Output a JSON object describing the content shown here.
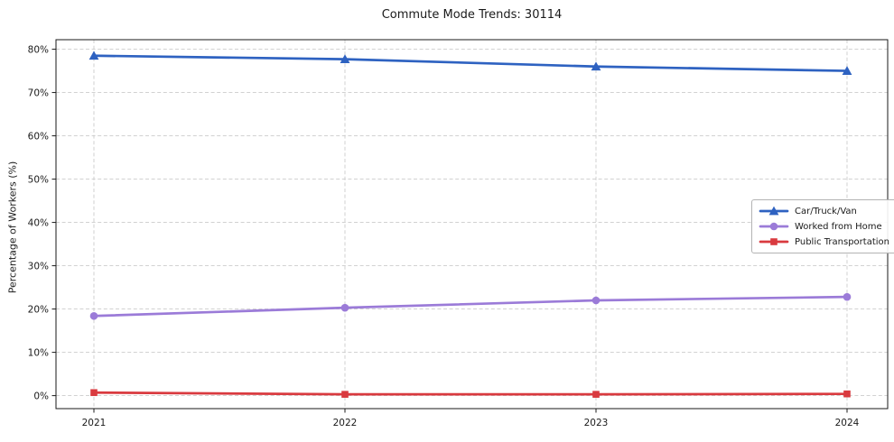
{
  "chart_data": {
    "type": "line",
    "title": "Commute Mode Trends: 30114",
    "xlabel": "",
    "ylabel": "Percentage of Workers (%)",
    "x": [
      "2021",
      "2022",
      "2023",
      "2024"
    ],
    "y_ticks": [
      "0%",
      "10%",
      "20%",
      "30%",
      "40%",
      "50%",
      "60%",
      "70%",
      "80%"
    ],
    "y_tick_values": [
      0,
      10,
      20,
      30,
      40,
      50,
      60,
      70,
      80
    ],
    "ylim": [
      -3,
      82.2
    ],
    "grid": true,
    "grid_style": "dashed",
    "grid_color": "#cbcbcb",
    "axis_color": "#1a1a1a",
    "legend_position": "center right",
    "series": [
      {
        "name": "Car/Truck/Van",
        "values": [
          78.5,
          77.7,
          76.0,
          75.0
        ],
        "color": "#2e62c1",
        "marker": "triangle"
      },
      {
        "name": "Worked from Home",
        "values": [
          18.4,
          20.3,
          22.0,
          22.8
        ],
        "color": "#9b7bd8",
        "marker": "circle"
      },
      {
        "name": "Public Transportation",
        "values": [
          0.7,
          0.3,
          0.3,
          0.4
        ],
        "color": "#d93a3f",
        "marker": "square"
      }
    ]
  }
}
